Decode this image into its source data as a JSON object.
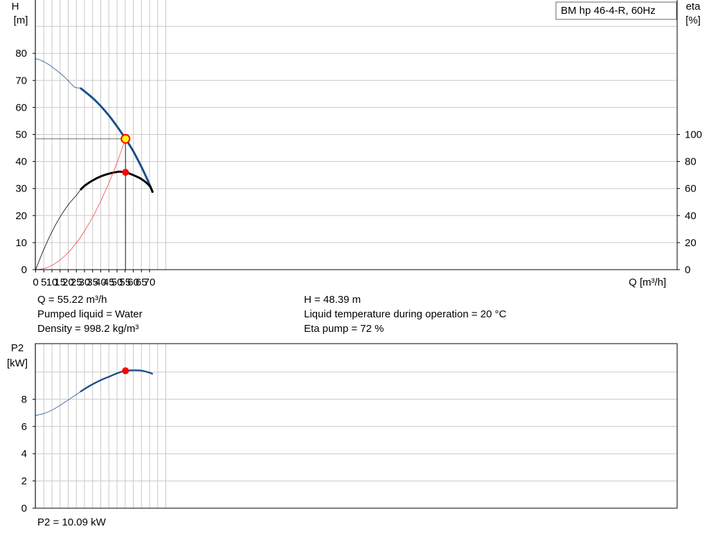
{
  "chart_data": [
    {
      "type": "line",
      "title": "BM hp 46-4-R, 60Hz",
      "xlabel": "Q [m³/h]",
      "ylabel_unit": "H",
      "ylabel_unit2": "[m]",
      "y2label_unit": "eta",
      "y2label_unit2": "[%]",
      "xlim": [
        0,
        75
      ],
      "ylim": [
        0,
        88
      ],
      "y2lim": [
        0,
        100
      ],
      "x_ticks": [
        "0",
        "5",
        "10",
        "15",
        "20",
        "25",
        "30",
        "35",
        "40",
        "45",
        "50",
        "55",
        "60",
        "65",
        "70"
      ],
      "y_ticks": [
        "0",
        "10",
        "20",
        "30",
        "40",
        "50",
        "60",
        "70",
        "80"
      ],
      "y2_ticks": [
        "0",
        "20",
        "40",
        "60",
        "80",
        "100"
      ],
      "grid": true,
      "legend": "top-right",
      "series": [
        {
          "key": "head",
          "color": "#1a4f8a",
          "axis": "left",
          "thin_x": [
            0,
            3,
            6,
            9,
            12,
            15,
            18,
            21,
            24,
            27.5
          ],
          "thin_y": [
            78.0,
            77.5,
            76.6,
            75.5,
            74.1,
            72.7,
            71.1,
            69.3,
            67.5,
            67.2
          ],
          "thick_x": [
            27.5,
            31,
            35,
            40,
            45,
            50,
            55.22,
            60,
            65,
            70,
            72
          ],
          "thick_y": [
            67.2,
            65.5,
            63.5,
            60.5,
            57.0,
            53.0,
            48.39,
            43.8,
            38.0,
            31.5,
            28.5
          ]
        },
        {
          "key": "eta",
          "color": "#000000",
          "axis": "right",
          "thin_x": [
            0,
            5,
            10,
            15,
            20,
            25,
            27.5
          ],
          "thin_y": [
            0,
            15,
            28,
            39,
            48,
            55,
            59
          ],
          "thick_x": [
            27.5,
            30,
            35,
            40,
            45,
            50,
            52,
            55.22,
            60,
            65,
            70,
            72
          ],
          "thick_y": [
            59,
            62,
            66,
            69,
            71,
            72.3,
            72.5,
            72,
            70,
            67,
            62,
            57
          ]
        },
        {
          "key": "system",
          "color": "#ff4040",
          "axis": "left",
          "x": [
            0,
            5,
            10,
            15,
            20,
            25,
            30,
            35,
            40,
            45,
            50,
            55.22
          ],
          "y": [
            0,
            0.4,
            1.6,
            3.6,
            6.3,
            9.9,
            14.3,
            19.4,
            25.4,
            32.1,
            39.6,
            48.39
          ]
        }
      ],
      "operating_point": {
        "Q": 55.22,
        "H": 48.39,
        "eta": 72
      }
    },
    {
      "type": "line",
      "ylabel_unit": "P2",
      "ylabel_unit2": "[kW]",
      "xlim": [
        0,
        75
      ],
      "ylim": [
        0,
        10.1
      ],
      "y_ticks": [
        "0",
        "2",
        "4",
        "6",
        "8"
      ],
      "grid": true,
      "series": [
        {
          "key": "power",
          "color": "#1a4f8a",
          "thin_x": [
            0,
            5,
            10,
            15,
            20,
            25,
            27.5
          ],
          "thin_y": [
            6.8,
            6.95,
            7.2,
            7.55,
            7.95,
            8.35,
            8.55
          ],
          "thick_x": [
            27.5,
            30,
            35,
            40,
            45,
            50,
            55.22,
            60,
            65,
            70,
            72
          ],
          "thick_y": [
            8.55,
            8.75,
            9.1,
            9.4,
            9.65,
            9.9,
            10.09,
            10.12,
            10.1,
            9.95,
            9.85
          ]
        }
      ],
      "operating_point": {
        "Q": 55.22,
        "P2": 10.09
      }
    }
  ],
  "info": {
    "q": "Q = 55.22 m³/h",
    "h": "H = 48.39 m",
    "liquid": "Pumped liquid = Water",
    "temp": "Liquid temperature during operation = 20 °C",
    "density": "Density = 998.2 kg/m³",
    "eta_pump": "Eta pump = 72 %",
    "p2": "P2 = 10.09 kW"
  },
  "colors": {
    "grid": "#c8c8c8",
    "operating_point_fill": "#ff0000",
    "head_point_fill": "#ffff00"
  }
}
